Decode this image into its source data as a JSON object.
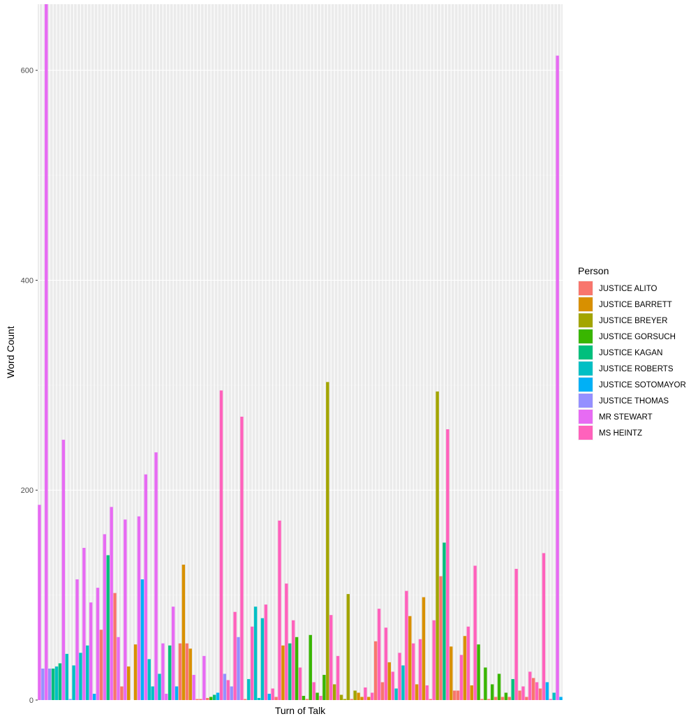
{
  "chart_data": {
    "type": "bar",
    "xlabel": "Turn of Talk",
    "ylabel": "Word Count",
    "ylim": [
      0,
      663
    ],
    "yticks": [
      0,
      200,
      400,
      600
    ],
    "grid": true,
    "legend": {
      "title": "Person",
      "placement": "right",
      "entries": [
        {
          "name": "JUSTICE ALITO",
          "color": "#F8766D"
        },
        {
          "name": "JUSTICE BARRETT",
          "color": "#D89000"
        },
        {
          "name": "JUSTICE BREYER",
          "color": "#A3A500"
        },
        {
          "name": "JUSTICE GORSUCH",
          "color": "#39B600"
        },
        {
          "name": "JUSTICE KAGAN",
          "color": "#00BF7D"
        },
        {
          "name": "JUSTICE ROBERTS",
          "color": "#00BFC4"
        },
        {
          "name": "JUSTICE SOTOMAYOR",
          "color": "#00B0F6"
        },
        {
          "name": "JUSTICE THOMAS",
          "color": "#9590FF"
        },
        {
          "name": "MR STEWART",
          "color": "#E76BF3"
        },
        {
          "name": "MS HEINTZ",
          "color": "#FF62BC"
        }
      ]
    },
    "bars": [
      {
        "person": "MR STEWART",
        "value": 186
      },
      {
        "person": "JUSTICE THOMAS",
        "value": 30
      },
      {
        "person": "MR STEWART",
        "value": 663
      },
      {
        "person": "JUSTICE THOMAS",
        "value": 30
      },
      {
        "person": "JUSTICE KAGAN",
        "value": 30
      },
      {
        "person": "JUSTICE ROBERTS",
        "value": 32
      },
      {
        "person": "JUSTICE KAGAN",
        "value": 35
      },
      {
        "person": "MR STEWART",
        "value": 248
      },
      {
        "person": "JUSTICE ROBERTS",
        "value": 44
      },
      {
        "person": "JUSTICE THOMAS",
        "value": 1
      },
      {
        "person": "JUSTICE ROBERTS",
        "value": 33
      },
      {
        "person": "MR STEWART",
        "value": 115
      },
      {
        "person": "JUSTICE ROBERTS",
        "value": 45
      },
      {
        "person": "MR STEWART",
        "value": 145
      },
      {
        "person": "JUSTICE ROBERTS",
        "value": 52
      },
      {
        "person": "MR STEWART",
        "value": 93
      },
      {
        "person": "JUSTICE SOTOMAYOR",
        "value": 6
      },
      {
        "person": "MR STEWART",
        "value": 107
      },
      {
        "person": "JUSTICE ALITO",
        "value": 67
      },
      {
        "person": "MR STEWART",
        "value": 158
      },
      {
        "person": "JUSTICE KAGAN",
        "value": 138
      },
      {
        "person": "MR STEWART",
        "value": 184
      },
      {
        "person": "JUSTICE ALITO",
        "value": 102
      },
      {
        "person": "MR STEWART",
        "value": 60
      },
      {
        "person": "JUSTICE ALITO",
        "value": 13
      },
      {
        "person": "MR STEWART",
        "value": 172
      },
      {
        "person": "JUSTICE BARRETT",
        "value": 32
      },
      {
        "person": "MR STEWART",
        "value": 0
      },
      {
        "person": "JUSTICE BARRETT",
        "value": 53
      },
      {
        "person": "MR STEWART",
        "value": 175
      },
      {
        "person": "JUSTICE SOTOMAYOR",
        "value": 115
      },
      {
        "person": "MR STEWART",
        "value": 215
      },
      {
        "person": "JUSTICE ROBERTS",
        "value": 39
      },
      {
        "person": "JUSTICE ROBERTS",
        "value": 13
      },
      {
        "person": "MR STEWART",
        "value": 236
      },
      {
        "person": "JUSTICE ROBERTS",
        "value": 25
      },
      {
        "person": "MR STEWART",
        "value": 54
      },
      {
        "person": "MR STEWART",
        "value": 6
      },
      {
        "person": "JUSTICE KAGAN",
        "value": 52
      },
      {
        "person": "MR STEWART",
        "value": 89
      },
      {
        "person": "JUSTICE SOTOMAYOR",
        "value": 13
      },
      {
        "person": "JUSTICE ALITO",
        "value": 54
      },
      {
        "person": "JUSTICE BARRETT",
        "value": 129
      },
      {
        "person": "JUSTICE ALITO",
        "value": 54
      },
      {
        "person": "JUSTICE BARRETT",
        "value": 49
      },
      {
        "person": "MR STEWART",
        "value": 24
      },
      {
        "person": "JUSTICE ALITO",
        "value": 1
      },
      {
        "person": "JUSTICE ALITO",
        "value": 1
      },
      {
        "person": "MR STEWART",
        "value": 42
      },
      {
        "person": "JUSTICE ALITO",
        "value": 2
      },
      {
        "person": "JUSTICE GORSUCH",
        "value": 3
      },
      {
        "person": "JUSTICE KAGAN",
        "value": 5
      },
      {
        "person": "JUSTICE SOTOMAYOR",
        "value": 7
      },
      {
        "person": "MS HEINTZ",
        "value": 295
      },
      {
        "person": "JUSTICE THOMAS",
        "value": 25
      },
      {
        "person": "MS HEINTZ",
        "value": 19
      },
      {
        "person": "JUSTICE THOMAS",
        "value": 13
      },
      {
        "person": "MS HEINTZ",
        "value": 84
      },
      {
        "person": "JUSTICE THOMAS",
        "value": 60
      },
      {
        "person": "MS HEINTZ",
        "value": 270
      },
      {
        "person": "JUSTICE ALITO",
        "value": 1
      },
      {
        "person": "JUSTICE ROBERTS",
        "value": 20
      },
      {
        "person": "MS HEINTZ",
        "value": 70
      },
      {
        "person": "JUSTICE ROBERTS",
        "value": 89
      },
      {
        "person": "JUSTICE ROBERTS",
        "value": 2
      },
      {
        "person": "JUSTICE ROBERTS",
        "value": 78
      },
      {
        "person": "MS HEINTZ",
        "value": 91
      },
      {
        "person": "JUSTICE SOTOMAYOR",
        "value": 6
      },
      {
        "person": "MS HEINTZ",
        "value": 11
      },
      {
        "person": "JUSTICE ALITO",
        "value": 3
      },
      {
        "person": "MS HEINTZ",
        "value": 171
      },
      {
        "person": "JUSTICE BARRETT",
        "value": 52
      },
      {
        "person": "MS HEINTZ",
        "value": 111
      },
      {
        "person": "JUSTICE KAGAN",
        "value": 54
      },
      {
        "person": "MS HEINTZ",
        "value": 76
      },
      {
        "person": "JUSTICE GORSUCH",
        "value": 60
      },
      {
        "person": "MS HEINTZ",
        "value": 31
      },
      {
        "person": "JUSTICE GORSUCH",
        "value": 4
      },
      {
        "person": "JUSTICE ALITO",
        "value": 1
      },
      {
        "person": "JUSTICE GORSUCH",
        "value": 62
      },
      {
        "person": "MS HEINTZ",
        "value": 17
      },
      {
        "person": "JUSTICE GORSUCH",
        "value": 7
      },
      {
        "person": "MS HEINTZ",
        "value": 4
      },
      {
        "person": "JUSTICE GORSUCH",
        "value": 24
      },
      {
        "person": "JUSTICE BREYER",
        "value": 303
      },
      {
        "person": "MS HEINTZ",
        "value": 81
      },
      {
        "person": "JUSTICE BREYER",
        "value": 15
      },
      {
        "person": "MS HEINTZ",
        "value": 42
      },
      {
        "person": "JUSTICE BREYER",
        "value": 5
      },
      {
        "person": "JUSTICE BREYER",
        "value": 1
      },
      {
        "person": "JUSTICE BREYER",
        "value": 101
      },
      {
        "person": "JUSTICE ALITO",
        "value": 1
      },
      {
        "person": "JUSTICE BREYER",
        "value": 9
      },
      {
        "person": "JUSTICE BARRETT",
        "value": 7
      },
      {
        "person": "JUSTICE BARRETT",
        "value": 3
      },
      {
        "person": "MS HEINTZ",
        "value": 12
      },
      {
        "person": "JUSTICE BARRETT",
        "value": 3
      },
      {
        "person": "MS HEINTZ",
        "value": 7
      },
      {
        "person": "JUSTICE ALITO",
        "value": 56
      },
      {
        "person": "MS HEINTZ",
        "value": 87
      },
      {
        "person": "JUSTICE ALITO",
        "value": 17
      },
      {
        "person": "MS HEINTZ",
        "value": 69
      },
      {
        "person": "JUSTICE BARRETT",
        "value": 36
      },
      {
        "person": "MS HEINTZ",
        "value": 27
      },
      {
        "person": "JUSTICE ROBERTS",
        "value": 11
      },
      {
        "person": "MS HEINTZ",
        "value": 45
      },
      {
        "person": "JUSTICE ROBERTS",
        "value": 33
      },
      {
        "person": "MS HEINTZ",
        "value": 104
      },
      {
        "person": "JUSTICE BARRETT",
        "value": 80
      },
      {
        "person": "MS HEINTZ",
        "value": 54
      },
      {
        "person": "JUSTICE BARRETT",
        "value": 15
      },
      {
        "person": "MS HEINTZ",
        "value": 58
      },
      {
        "person": "JUSTICE BARRETT",
        "value": 98
      },
      {
        "person": "MS HEINTZ",
        "value": 14
      },
      {
        "person": "JUSTICE ALITO",
        "value": 1
      },
      {
        "person": "MS HEINTZ",
        "value": 76
      },
      {
        "person": "JUSTICE BREYER",
        "value": 294
      },
      {
        "person": "JUSTICE ALITO",
        "value": 118
      },
      {
        "person": "JUSTICE KAGAN",
        "value": 150
      },
      {
        "person": "MS HEINTZ",
        "value": 258
      },
      {
        "person": "JUSTICE BARRETT",
        "value": 51
      },
      {
        "person": "JUSTICE ALITO",
        "value": 9
      },
      {
        "person": "JUSTICE ALITO",
        "value": 9
      },
      {
        "person": "MS HEINTZ",
        "value": 43
      },
      {
        "person": "JUSTICE BARRETT",
        "value": 61
      },
      {
        "person": "MS HEINTZ",
        "value": 70
      },
      {
        "person": "JUSTICE BARRETT",
        "value": 14
      },
      {
        "person": "MS HEINTZ",
        "value": 128
      },
      {
        "person": "JUSTICE GORSUCH",
        "value": 53
      },
      {
        "person": "JUSTICE ALITO",
        "value": 1
      },
      {
        "person": "JUSTICE GORSUCH",
        "value": 31
      },
      {
        "person": "JUSTICE ALITO",
        "value": 1
      },
      {
        "person": "JUSTICE GORSUCH",
        "value": 15
      },
      {
        "person": "JUSTICE ALITO",
        "value": 3
      },
      {
        "person": "JUSTICE GORSUCH",
        "value": 25
      },
      {
        "person": "JUSTICE ALITO",
        "value": 3
      },
      {
        "person": "JUSTICE GORSUCH",
        "value": 7
      },
      {
        "person": "JUSTICE ALITO",
        "value": 3
      },
      {
        "person": "JUSTICE KAGAN",
        "value": 20
      },
      {
        "person": "MS HEINTZ",
        "value": 125
      },
      {
        "person": "JUSTICE ALITO",
        "value": 9
      },
      {
        "person": "MS HEINTZ",
        "value": 13
      },
      {
        "person": "JUSTICE ALITO",
        "value": 3
      },
      {
        "person": "MS HEINTZ",
        "value": 27
      },
      {
        "person": "JUSTICE ALITO",
        "value": 21
      },
      {
        "person": "MS HEINTZ",
        "value": 17
      },
      {
        "person": "JUSTICE ALITO",
        "value": 11
      },
      {
        "person": "MS HEINTZ",
        "value": 140
      },
      {
        "person": "JUSTICE SOTOMAYOR",
        "value": 17
      },
      {
        "person": "MS HEINTZ",
        "value": 1
      },
      {
        "person": "JUSTICE ROBERTS",
        "value": 7
      },
      {
        "person": "MR STEWART",
        "value": 614
      },
      {
        "person": "JUSTICE SOTOMAYOR",
        "value": 3
      }
    ]
  }
}
